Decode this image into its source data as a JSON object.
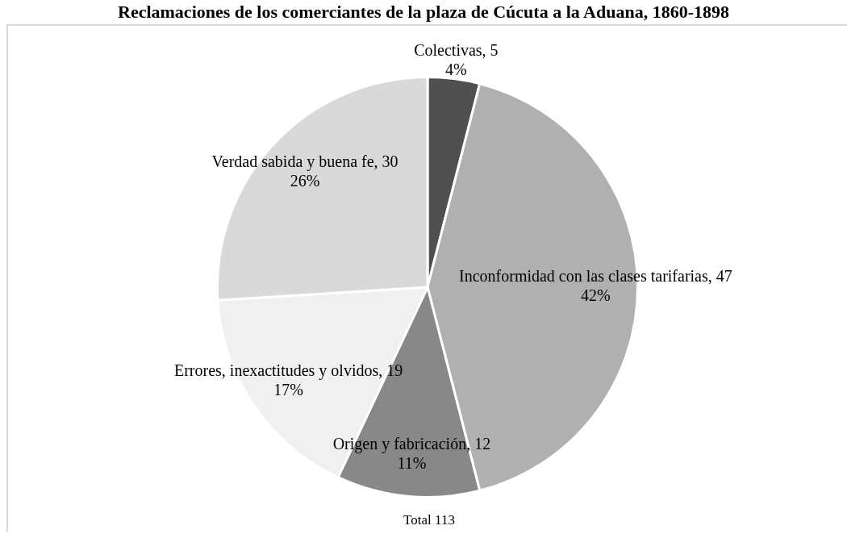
{
  "chart_data": {
    "type": "pie",
    "title": "Reclamaciones de los comerciantes de la plaza de Cúcuta a la Aduana, 1860-1898",
    "categories": [
      "Colectivas, 5",
      "Inconformidad con las clases tarifarias, 47",
      "Origen y fabricación, 12",
      "Errores, inexactitudes y olvidos, 19",
      "Verdad sabida y buena fe, 30"
    ],
    "values": [
      4,
      42,
      11,
      17,
      26
    ],
    "value_labels": [
      "4%",
      "42%",
      "11%",
      "17%",
      "26%"
    ],
    "colors": [
      "#505050",
      "#b0b0b0",
      "#888888",
      "#f0f0f0",
      "#d9d9d9"
    ],
    "legend": false,
    "annotations": [
      "Total 113"
    ]
  }
}
